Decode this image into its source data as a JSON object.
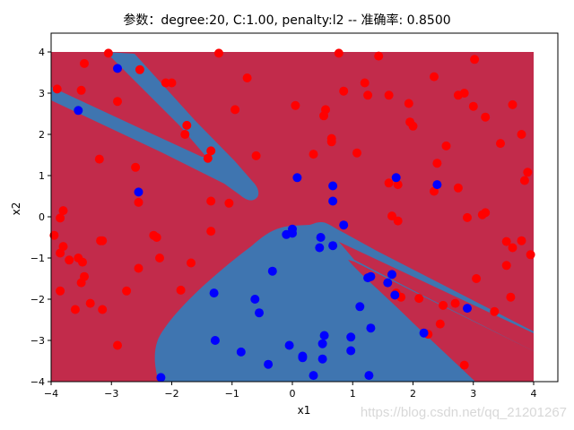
{
  "title": "参数：degree:20, C:1.00, penalty:l2 -- 准确率: 0.8500",
  "watermark": "https://blog.csdn.net/qq_21201267",
  "colors": {
    "region_class0": "#c22b4b",
    "region_class1": "#3f75b0",
    "point_class0": "#ff0000",
    "point_class1": "#0000ff"
  },
  "chart_data": {
    "type": "scatter",
    "title": "参数：degree:20, C:1.00, penalty:l2 -- 准确率: 0.8500",
    "xlabel": "x1",
    "ylabel": "x2",
    "xlim": [
      -4,
      4.4
    ],
    "ylim": [
      -4,
      4.4
    ],
    "xticks": [
      "-4",
      "-3",
      "-2",
      "-1",
      "0",
      "1",
      "2",
      "3",
      "4"
    ],
    "yticks": [
      "4",
      "3",
      "2",
      "1",
      "0",
      "-1",
      "-2",
      "-3",
      "-4"
    ],
    "grid": false,
    "background": "decision-boundary contourf over [-4,4]x[-4,4]",
    "series": [
      {
        "name": "class 0",
        "color": "#ff0000",
        "points": [
          [
            -3.9,
            3.1
          ],
          [
            -3.05,
            3.97
          ],
          [
            -1.22,
            3.97
          ],
          [
            0.77,
            3.97
          ],
          [
            1.43,
            3.9
          ],
          [
            3.02,
            3.82
          ],
          [
            -3.45,
            3.72
          ],
          [
            -2.53,
            3.57
          ],
          [
            -2.1,
            3.25
          ],
          [
            -2.0,
            3.25
          ],
          [
            -0.75,
            3.37
          ],
          [
            -3.5,
            3.07
          ],
          [
            -2.9,
            2.8
          ],
          [
            -1.75,
            2.22
          ],
          [
            -1.78,
            2.0
          ],
          [
            0.05,
            2.7
          ],
          [
            -0.95,
            2.6
          ],
          [
            0.85,
            3.05
          ],
          [
            1.2,
            3.25
          ],
          [
            1.6,
            2.95
          ],
          [
            2.35,
            3.4
          ],
          [
            2.85,
            3.0
          ],
          [
            2.75,
            2.95
          ],
          [
            1.25,
            2.95
          ],
          [
            3.0,
            2.68
          ],
          [
            3.2,
            2.42
          ],
          [
            1.95,
            2.3
          ],
          [
            2.0,
            2.2
          ],
          [
            0.55,
            2.6
          ],
          [
            0.52,
            2.45
          ],
          [
            1.93,
            2.75
          ],
          [
            2.55,
            1.72
          ],
          [
            0.65,
            1.9
          ],
          [
            0.65,
            1.82
          ],
          [
            3.65,
            2.72
          ],
          [
            3.8,
            2.0
          ],
          [
            3.45,
            1.78
          ],
          [
            0.35,
            1.52
          ],
          [
            1.07,
            1.55
          ],
          [
            -3.2,
            1.4
          ],
          [
            -2.6,
            1.2
          ],
          [
            -1.35,
            1.6
          ],
          [
            -1.4,
            1.42
          ],
          [
            -0.6,
            1.48
          ],
          [
            -2.55,
            0.35
          ],
          [
            -1.35,
            0.38
          ],
          [
            -1.05,
            0.33
          ],
          [
            1.6,
            0.82
          ],
          [
            1.75,
            0.78
          ],
          [
            2.35,
            0.62
          ],
          [
            2.4,
            1.3
          ],
          [
            2.75,
            0.7
          ],
          [
            3.9,
            1.08
          ],
          [
            3.85,
            0.88
          ],
          [
            3.2,
            0.1
          ],
          [
            3.15,
            0.05
          ],
          [
            2.9,
            -0.02
          ],
          [
            1.65,
            0.02
          ],
          [
            1.75,
            -0.1
          ],
          [
            -3.8,
            0.15
          ],
          [
            -3.85,
            -0.03
          ],
          [
            -3.95,
            -0.45
          ],
          [
            -3.8,
            -0.72
          ],
          [
            -3.85,
            -0.88
          ],
          [
            -3.7,
            -1.05
          ],
          [
            -3.55,
            -1.0
          ],
          [
            -3.48,
            -1.1
          ],
          [
            -3.45,
            -1.45
          ],
          [
            -3.5,
            -1.6
          ],
          [
            -3.15,
            -0.58
          ],
          [
            -3.18,
            -0.58
          ],
          [
            -2.3,
            -0.45
          ],
          [
            -2.25,
            -0.5
          ],
          [
            -2.2,
            -1.0
          ],
          [
            -2.55,
            -1.25
          ],
          [
            -1.68,
            -1.12
          ],
          [
            -1.35,
            -0.35
          ],
          [
            -3.85,
            -1.8
          ],
          [
            -3.35,
            -2.1
          ],
          [
            -3.6,
            -2.25
          ],
          [
            -3.15,
            -2.25
          ],
          [
            -2.75,
            -1.8
          ],
          [
            -1.85,
            -1.78
          ],
          [
            -2.9,
            -3.12
          ],
          [
            3.55,
            -0.6
          ],
          [
            3.65,
            -0.75
          ],
          [
            3.8,
            -0.58
          ],
          [
            3.95,
            -0.92
          ],
          [
            3.55,
            -1.18
          ],
          [
            3.62,
            -1.95
          ],
          [
            3.35,
            -2.3
          ],
          [
            3.05,
            -1.5
          ],
          [
            2.1,
            -1.98
          ],
          [
            2.5,
            -2.15
          ],
          [
            2.45,
            -2.6
          ],
          [
            2.7,
            -2.1
          ],
          [
            1.72,
            -1.85
          ],
          [
            2.25,
            -2.85
          ],
          [
            2.85,
            -3.6
          ],
          [
            1.8,
            -1.95
          ]
        ]
      },
      {
        "name": "class 1",
        "color": "#0000ff",
        "points": [
          [
            -2.9,
            3.6
          ],
          [
            -3.55,
            2.58
          ],
          [
            -2.55,
            0.6
          ],
          [
            0.08,
            0.95
          ],
          [
            0.67,
            0.75
          ],
          [
            0.67,
            0.38
          ],
          [
            1.72,
            0.95
          ],
          [
            2.4,
            0.78
          ],
          [
            0.85,
            -0.2
          ],
          [
            -0.1,
            -0.43
          ],
          [
            0.0,
            -0.4
          ],
          [
            0.0,
            -0.3
          ],
          [
            0.47,
            -0.5
          ],
          [
            0.67,
            -0.7
          ],
          [
            0.45,
            -0.75
          ],
          [
            -1.3,
            -1.85
          ],
          [
            -0.33,
            -1.32
          ],
          [
            -0.62,
            -2.0
          ],
          [
            -0.55,
            -2.33
          ],
          [
            1.12,
            -2.18
          ],
          [
            1.25,
            -1.48
          ],
          [
            1.3,
            -1.45
          ],
          [
            1.58,
            -1.6
          ],
          [
            1.65,
            -1.4
          ],
          [
            1.7,
            -1.9
          ],
          [
            2.18,
            -2.82
          ],
          [
            2.9,
            -2.22
          ],
          [
            -1.28,
            -3.0
          ],
          [
            -0.85,
            -3.28
          ],
          [
            -0.05,
            -3.12
          ],
          [
            0.35,
            -3.85
          ],
          [
            0.17,
            -3.38
          ],
          [
            0.17,
            -3.42
          ],
          [
            0.53,
            -2.88
          ],
          [
            0.5,
            -3.08
          ],
          [
            0.5,
            -3.45
          ],
          [
            0.97,
            -2.92
          ],
          [
            0.97,
            -3.25
          ],
          [
            1.3,
            -2.7
          ],
          [
            1.27,
            -3.85
          ],
          [
            -0.4,
            -3.58
          ],
          [
            -2.18,
            -3.9
          ]
        ]
      }
    ]
  }
}
